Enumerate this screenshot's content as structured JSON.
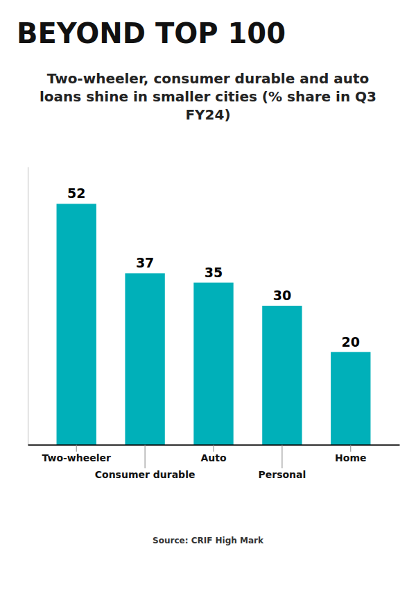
{
  "chart_data": {
    "type": "bar",
    "title": "BEYOND TOP 100",
    "subtitle": "Two-wheeler, consumer durable and auto loans shine in smaller cities (% share in Q3 FY24)",
    "categories": [
      "Two-wheeler",
      "Consumer durable",
      "Auto",
      "Personal",
      "Home"
    ],
    "values": [
      52,
      37,
      35,
      30,
      20
    ],
    "color": "#00B0B9",
    "ylim": [
      0,
      60
    ],
    "data_labels": true,
    "tick_labels": "x",
    "grid": false,
    "annotations": [
      "Source: CRIF High Mark"
    ]
  }
}
